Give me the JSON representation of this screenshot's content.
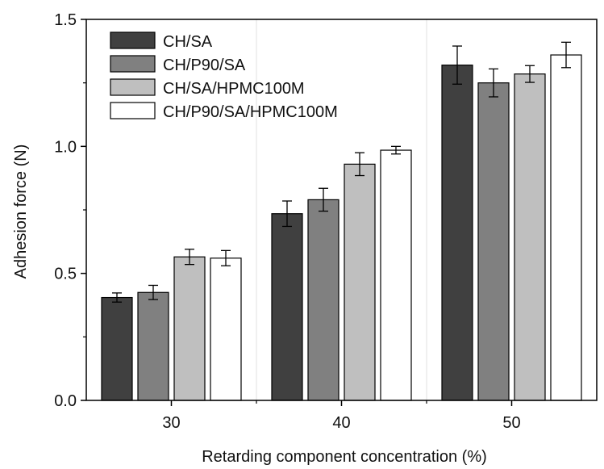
{
  "chart_data": {
    "type": "bar",
    "title": "",
    "xlabel": "Retarding component concentration (%)",
    "ylabel": "Adhesion force (N)",
    "categories": [
      "30",
      "40",
      "50"
    ],
    "ylim": [
      0,
      1.5
    ],
    "yticks": [
      "0.0",
      "0.5",
      "1.0",
      "1.5"
    ],
    "grid": false,
    "legend_position": "top-left",
    "series": [
      {
        "name": "CH/SA",
        "color": "#404040",
        "values": [
          0.405,
          0.735,
          1.32
        ],
        "errors": [
          0.018,
          0.05,
          0.075
        ]
      },
      {
        "name": "CH/P90/SA",
        "color": "#808080",
        "values": [
          0.425,
          0.79,
          1.25
        ],
        "errors": [
          0.028,
          0.045,
          0.055
        ]
      },
      {
        "name": "CH/SA/HPMC100M",
        "color": "#bfbfbf",
        "values": [
          0.565,
          0.93,
          1.285
        ],
        "errors": [
          0.03,
          0.045,
          0.033
        ]
      },
      {
        "name": "CH/P90/SA/HPMC100M",
        "color": "#ffffff",
        "values": [
          0.56,
          0.985,
          1.36
        ],
        "errors": [
          0.03,
          0.015,
          0.05
        ]
      }
    ]
  }
}
